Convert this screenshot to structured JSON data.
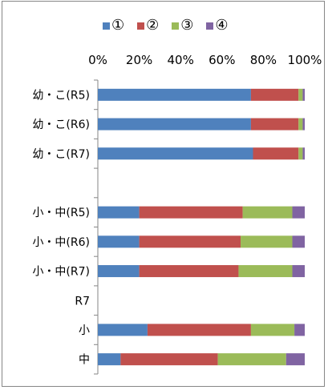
{
  "chart_data": {
    "type": "bar",
    "orientation": "horizontal",
    "stacked": true,
    "percent_stacked": true,
    "categories": [
      "幼・こ(R5)",
      "幼・こ(R6)",
      "幼・こ(R7)",
      "",
      "小・中(R5)",
      "小・中(R6)",
      "小・中(R7)",
      "R7",
      "小",
      "中"
    ],
    "series": [
      {
        "name": "①",
        "color": "#4f81bd",
        "values": [
          74,
          74,
          75,
          null,
          20,
          20,
          20,
          null,
          24,
          11
        ]
      },
      {
        "name": "②",
        "color": "#c0504d",
        "values": [
          23,
          23,
          22,
          null,
          50,
          49,
          48,
          null,
          50,
          47
        ]
      },
      {
        "name": "③",
        "color": "#9bbb59",
        "values": [
          2,
          2,
          2,
          null,
          24,
          25,
          26,
          null,
          21,
          33
        ]
      },
      {
        "name": "④",
        "color": "#8064a2",
        "values": [
          1,
          1,
          1,
          null,
          6,
          6,
          6,
          null,
          5,
          9
        ]
      }
    ],
    "xlim": [
      0,
      100
    ],
    "xticks": [
      "0%",
      "20%",
      "40%",
      "60%",
      "80%",
      "100%"
    ],
    "legend": "top",
    "grid": false
  }
}
